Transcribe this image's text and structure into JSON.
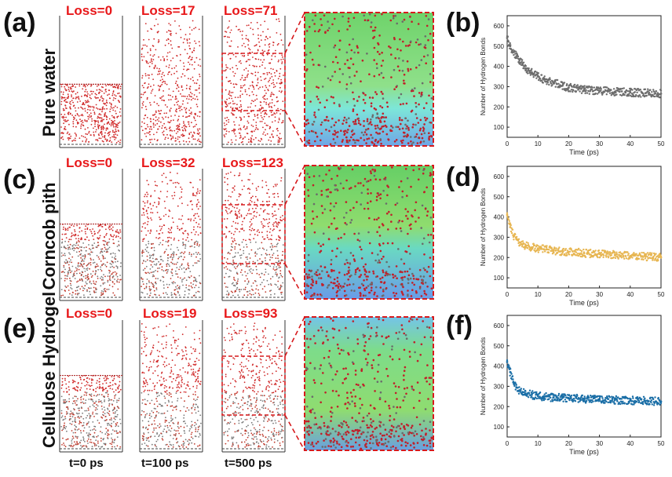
{
  "panel_labels": {
    "a": "(a)",
    "b": "(b)",
    "c": "(c)",
    "d": "(d)",
    "e": "(e)",
    "f": "(f)"
  },
  "rows": [
    {
      "label": "Pure water",
      "losses": [
        "Loss=0",
        "Loss=17",
        "Loss=71"
      ],
      "water_fill": 0.48
    },
    {
      "label": "Corncob pith",
      "losses": [
        "Loss=0",
        "Loss=32",
        "Loss=123"
      ],
      "water_fill": 0.58
    },
    {
      "label": "Cellulose Hydrogel",
      "losses": [
        "Loss=0",
        "Loss=19",
        "Loss=93"
      ],
      "water_fill": 0.58
    }
  ],
  "time_labels": [
    "t=0 ps",
    "t=100 ps",
    "t=500 ps"
  ],
  "colors": {
    "loss_text": "#e8181a",
    "pure_water_series": "#6d6d6d",
    "corncob_series": "#e7b652",
    "hydrogel_series": "#1a6ea6",
    "zoom_box": "#d7191c"
  },
  "chart_data": [
    {
      "panel": "(b)",
      "type": "scatter",
      "xlabel": "Time (ps)",
      "ylabel": "Number of Hydrogen Bonds",
      "xlim": [
        0,
        50
      ],
      "ylim": [
        50,
        650
      ],
      "xticks": [
        0,
        10,
        20,
        30,
        40,
        50
      ],
      "yticks": [
        100,
        200,
        300,
        400,
        500,
        600
      ],
      "series": [
        {
          "name": "Pure water",
          "color": "#6d6d6d",
          "x": [
            0,
            1,
            2,
            3,
            4,
            5,
            6,
            8,
            10,
            12,
            15,
            18,
            20,
            25,
            30,
            35,
            40,
            45,
            50
          ],
          "y": [
            540,
            500,
            470,
            450,
            430,
            410,
            390,
            370,
            350,
            335,
            320,
            305,
            295,
            285,
            280,
            275,
            272,
            268,
            265
          ]
        }
      ]
    },
    {
      "panel": "(d)",
      "type": "scatter",
      "xlabel": "Time (ps)",
      "ylabel": "Number of Hydrogen Bonds",
      "xlim": [
        0,
        50
      ],
      "ylim": [
        50,
        650
      ],
      "xticks": [
        0,
        10,
        20,
        30,
        40,
        50
      ],
      "yticks": [
        100,
        200,
        300,
        400,
        500,
        600
      ],
      "series": [
        {
          "name": "Corncob pith",
          "color": "#e7b652",
          "x": [
            0,
            1,
            2,
            3,
            4,
            5,
            6,
            8,
            10,
            12,
            15,
            18,
            20,
            25,
            30,
            35,
            40,
            45,
            50
          ],
          "y": [
            410,
            350,
            310,
            290,
            275,
            265,
            258,
            250,
            245,
            240,
            235,
            230,
            228,
            222,
            218,
            212,
            208,
            205,
            200
          ]
        }
      ]
    },
    {
      "panel": "(f)",
      "type": "scatter",
      "xlabel": "Time (ps)",
      "ylabel": "Number of Hydrogen Bonds",
      "xlim": [
        0,
        50
      ],
      "ylim": [
        50,
        650
      ],
      "xticks": [
        0,
        10,
        20,
        30,
        40,
        50
      ],
      "yticks": [
        100,
        200,
        300,
        400,
        500,
        600
      ],
      "series": [
        {
          "name": "Cellulose Hydrogel",
          "color": "#1a6ea6",
          "x": [
            0,
            1,
            2,
            3,
            4,
            5,
            6,
            8,
            10,
            12,
            15,
            18,
            20,
            25,
            30,
            35,
            40,
            45,
            50
          ],
          "y": [
            420,
            370,
            320,
            295,
            280,
            272,
            265,
            258,
            252,
            248,
            245,
            243,
            242,
            238,
            235,
            232,
            230,
            228,
            225
          ]
        }
      ]
    }
  ]
}
